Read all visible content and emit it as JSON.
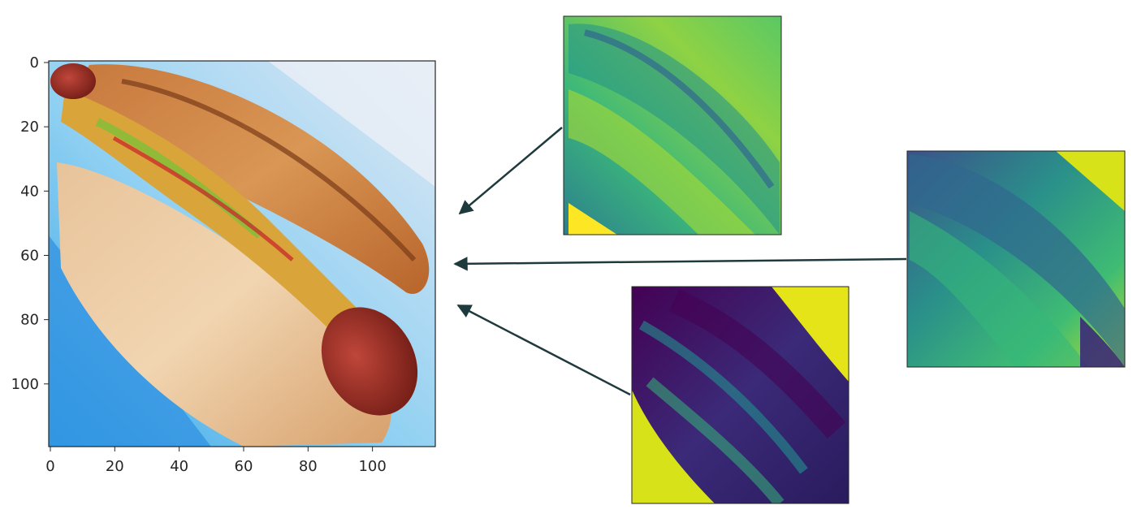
{
  "main_image": {
    "description_icon": "hotdog-photo",
    "x_ticks": [
      "0",
      "20",
      "40",
      "60",
      "80",
      "100"
    ],
    "y_ticks": [
      "0",
      "20",
      "40",
      "60",
      "80",
      "100"
    ],
    "x_tick_values": [
      0,
      20,
      40,
      60,
      80,
      100
    ],
    "y_tick_values": [
      0,
      20,
      40,
      60,
      80,
      100
    ],
    "xlim": [
      -0.5,
      119.5
    ],
    "ylim": [
      119.5,
      -0.5
    ]
  },
  "channel_maps": [
    {
      "id": "channel-1",
      "colormap": "viridis",
      "tone": "bright"
    },
    {
      "id": "channel-2",
      "colormap": "viridis",
      "tone": "mid"
    },
    {
      "id": "channel-3",
      "colormap": "viridis",
      "tone": "dark"
    }
  ],
  "colors": {
    "arrow": "#1f3a3d",
    "axis": "#262626",
    "viridis_dark": "#440154",
    "viridis_blue": "#31688e",
    "viridis_teal": "#21918c",
    "viridis_green": "#35b779",
    "viridis_yellow": "#fde725"
  }
}
